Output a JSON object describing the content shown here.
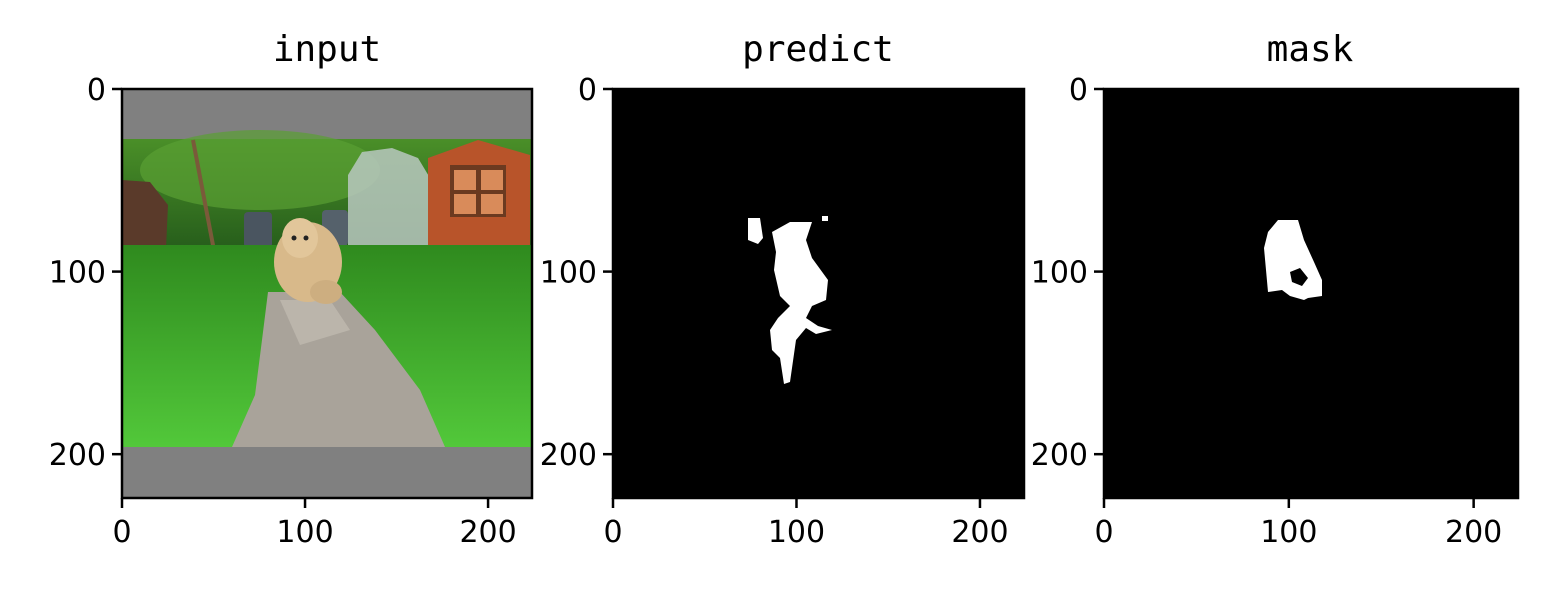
{
  "chart_data": [
    {
      "type": "image",
      "title": "input",
      "image": "photo-dog-running-on-garden-path",
      "xlim": [
        0,
        224
      ],
      "ylim": [
        224,
        0
      ],
      "xticks": [
        0,
        100,
        200
      ],
      "yticks": [
        0,
        100,
        200
      ],
      "xtick_labels": [
        "0",
        "100",
        "200"
      ],
      "ytick_labels": [
        "0",
        "100",
        "200"
      ]
    },
    {
      "type": "image",
      "title": "predict",
      "image": "binary-segmentation-mask",
      "xlim": [
        0,
        224
      ],
      "ylim": [
        224,
        0
      ],
      "xticks": [
        0,
        100,
        200
      ],
      "yticks": [
        0,
        100,
        200
      ],
      "xtick_labels": [
        "0",
        "100",
        "200"
      ],
      "ytick_labels": [
        "0",
        "100",
        "200"
      ]
    },
    {
      "type": "image",
      "title": "mask",
      "image": "binary-segmentation-mask",
      "xlim": [
        0,
        224
      ],
      "ylim": [
        224,
        0
      ],
      "xticks": [
        0,
        100,
        200
      ],
      "yticks": [
        0,
        100,
        200
      ],
      "xtick_labels": [
        "0",
        "100",
        "200"
      ],
      "ytick_labels": [
        "0",
        "100",
        "200"
      ]
    }
  ],
  "colors": {
    "background": "#ffffff",
    "mask_bg": "#000000",
    "mask_fg": "#ffffff",
    "pad_gray": "#808080",
    "grass": "#3fb52a",
    "grass_dark": "#2a7a1a",
    "hedge": "#2f6e1c",
    "path": "#a9a39a",
    "dog": "#d8b98a",
    "shed": "#b8542a"
  }
}
